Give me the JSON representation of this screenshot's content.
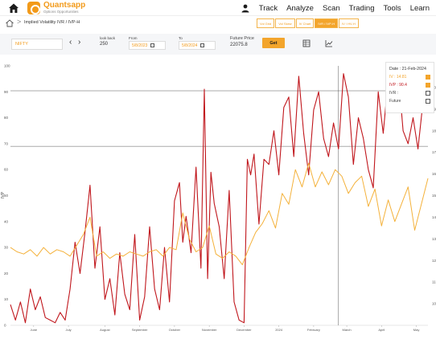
{
  "nav": {
    "brand": "Quantsapp",
    "tagline": "Options Opportunities",
    "items": [
      "Track",
      "Analyze",
      "Scan",
      "Trading",
      "Tools",
      "Learn"
    ]
  },
  "breadcrumb": {
    "sep": ">",
    "text": "Implied Volatility IVR / IVP-H"
  },
  "tabs": [
    "Vol Grid",
    "Vol Skew",
    "IV Chart",
    "IVR / IVP-H",
    "IV / HV-H"
  ],
  "active_tab": 3,
  "controls": {
    "symbol": "NIFTY",
    "lookback_label": "look back",
    "lookback_value": "250",
    "from_label": "From",
    "from_value": "5/8/2023",
    "to_label": "To",
    "to_value": "5/8/2024",
    "future_label": "Future Price",
    "future_value": "22075.8",
    "get_label": "Get"
  },
  "tooltip": {
    "date": "Date : 21-Feb-2024",
    "iv": "IV : 14.81",
    "ivp": "IVP : 90.4",
    "ivr": "IVR :",
    "future": "Future"
  },
  "colors": {
    "accent": "#f3a52c",
    "ivp_line": "#c0161c",
    "iv_line": "#f4b13a",
    "ref_line": "#555555"
  },
  "chart_data": {
    "type": "line",
    "title": "",
    "xlabel": "",
    "ylabel": "IVP",
    "ylim": [
      0,
      100
    ],
    "yticks": [
      0,
      10,
      20,
      30,
      40,
      50,
      60,
      70,
      80,
      90,
      100
    ],
    "y2lim": [
      9,
      21
    ],
    "y2ticks": [
      10,
      11,
      12,
      13,
      14,
      15,
      16,
      17,
      18,
      19,
      20
    ],
    "xlim": [
      0,
      252
    ],
    "xticks": [
      {
        "x": 14,
        "label": "June"
      },
      {
        "x": 35,
        "label": "July"
      },
      {
        "x": 57,
        "label": "August"
      },
      {
        "x": 78,
        "label": "September"
      },
      {
        "x": 99,
        "label": "October"
      },
      {
        "x": 120,
        "label": "November"
      },
      {
        "x": 141,
        "label": "December"
      },
      {
        "x": 162,
        "label": "2024"
      },
      {
        "x": 183,
        "label": "February"
      },
      {
        "x": 203,
        "label": "March"
      },
      {
        "x": 224,
        "label": "April"
      },
      {
        "x": 245,
        "label": "May"
      }
    ],
    "hlines": [
      90.4,
      69
    ],
    "vline_x": 198,
    "series": [
      {
        "name": "IVP",
        "axis": "left",
        "x": [
          0,
          3,
          6,
          9,
          12,
          15,
          18,
          21,
          24,
          27,
          30,
          33,
          36,
          39,
          42,
          45,
          48,
          51,
          54,
          57,
          60,
          63,
          66,
          69,
          72,
          75,
          78,
          81,
          84,
          87,
          90,
          93,
          96,
          99,
          102,
          104,
          106,
          109,
          112,
          115,
          117,
          119,
          121,
          123,
          126,
          129,
          132,
          135,
          138,
          141,
          143,
          145,
          147,
          150,
          153,
          156,
          159,
          162,
          165,
          168,
          171,
          174,
          177,
          180,
          183,
          186,
          189,
          192,
          195,
          198,
          201,
          204,
          207,
          210,
          213,
          216,
          219,
          222,
          225,
          228,
          231,
          234,
          237,
          240,
          243,
          246,
          249,
          252
        ],
        "y": [
          8,
          2,
          9,
          1,
          14,
          6,
          11,
          3,
          2,
          1,
          5,
          2,
          14,
          32,
          20,
          36,
          54,
          22,
          38,
          10,
          18,
          4,
          28,
          12,
          6,
          35,
          2,
          11,
          38,
          14,
          6,
          30,
          9,
          48,
          55,
          32,
          42,
          28,
          61,
          22,
          91,
          18,
          59,
          47,
          38,
          18,
          52,
          9,
          2,
          1,
          64,
          58,
          66,
          39,
          64,
          62,
          75,
          58,
          84,
          88,
          65,
          96,
          74,
          58,
          83,
          90,
          72,
          65,
          78,
          68,
          97,
          88,
          62,
          80,
          72,
          60,
          53,
          90,
          74,
          95,
          87,
          98,
          75,
          70,
          80,
          68,
          86,
          85
        ]
      },
      {
        "name": "IV",
        "axis": "right",
        "x": [
          0,
          4,
          8,
          12,
          16,
          20,
          24,
          28,
          32,
          36,
          40,
          44,
          48,
          52,
          56,
          60,
          64,
          68,
          72,
          76,
          80,
          84,
          88,
          92,
          96,
          100,
          104,
          108,
          112,
          116,
          120,
          124,
          128,
          132,
          136,
          140,
          144,
          148,
          152,
          156,
          160,
          164,
          168,
          172,
          176,
          180,
          184,
          188,
          192,
          196,
          200,
          204,
          208,
          212,
          216,
          220,
          224,
          228,
          232,
          236,
          240,
          244,
          248,
          252
        ],
        "y": [
          12.6,
          12.4,
          12.3,
          12.5,
          12.2,
          12.6,
          12.3,
          12.5,
          12.4,
          12.2,
          12.7,
          13.2,
          14.0,
          12.2,
          12.4,
          12.1,
          12.3,
          12.2,
          12.4,
          12.3,
          12.2,
          12.4,
          12.5,
          12.2,
          12.6,
          12.5,
          14.2,
          13.0,
          12.4,
          12.6,
          13.6,
          12.3,
          12.1,
          12.4,
          12.2,
          11.8,
          12.6,
          13.3,
          13.7,
          14.3,
          13.5,
          15.1,
          14.6,
          16.2,
          15.4,
          16.5,
          15.4,
          16.1,
          15.5,
          16.2,
          15.9,
          15.1,
          15.6,
          15.9,
          14.5,
          15.3,
          13.6,
          14.8,
          13.8,
          14.6,
          15.4,
          13.4,
          14.6,
          15.8
        ]
      }
    ]
  }
}
